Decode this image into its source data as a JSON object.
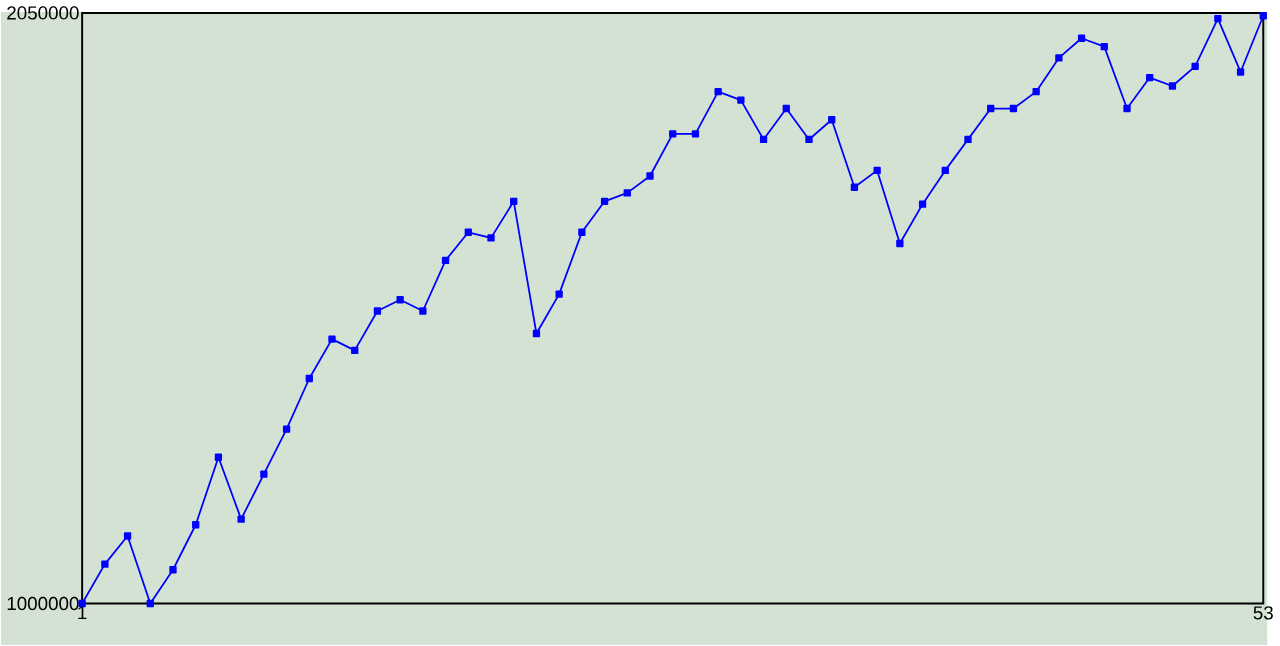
{
  "chart_data": {
    "type": "line",
    "x": [
      1,
      2,
      3,
      4,
      5,
      6,
      7,
      8,
      9,
      10,
      11,
      12,
      13,
      14,
      15,
      16,
      17,
      18,
      19,
      20,
      21,
      22,
      23,
      24,
      25,
      26,
      27,
      28,
      29,
      30,
      31,
      32,
      33,
      34,
      35,
      36,
      37,
      38,
      39,
      40,
      41,
      42,
      43,
      44,
      45,
      46,
      47,
      48,
      49,
      50,
      51,
      52,
      53
    ],
    "series": [
      {
        "color": "#0000ff",
        "values": [
          1000000,
          1070000,
          1120000,
          1000000,
          1060000,
          1140000,
          1260000,
          1150000,
          1230000,
          1310000,
          1400000,
          1470000,
          1450000,
          1520000,
          1540000,
          1520000,
          1610000,
          1660000,
          1650000,
          1715000,
          1480000,
          1550000,
          1660000,
          1715000,
          1730000,
          1760000,
          1835000,
          1835000,
          1910000,
          1895000,
          1825000,
          1880000,
          1825000,
          1860000,
          1740000,
          1770000,
          1640000,
          1710000,
          1770000,
          1825000,
          1880000,
          1880000,
          1910000,
          1970000,
          2005000,
          1990000,
          1880000,
          1935000,
          1920000,
          1955000,
          2040000,
          1945000,
          2045000
        ]
      }
    ],
    "xlim": [
      1,
      53
    ],
    "xticks": [
      1,
      53
    ],
    "ylim": [
      1000000,
      2050000
    ],
    "yticks": [
      1000000,
      2050000
    ],
    "marker": "square",
    "line_style": "solid"
  }
}
